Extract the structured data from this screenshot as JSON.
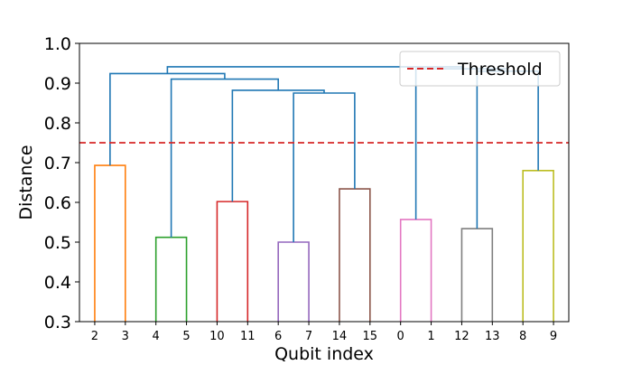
{
  "chart_data": {
    "type": "dendrogram",
    "title": "",
    "xlabel": "Qubit index",
    "ylabel": "Distance",
    "ylim": [
      0.3,
      1.0
    ],
    "yticks": [
      0.3,
      0.4,
      0.5,
      0.6,
      0.7,
      0.8,
      0.9,
      1.0
    ],
    "grid": false,
    "legend_placement": "top-right",
    "leaf_labels": [
      "2",
      "3",
      "4",
      "5",
      "10",
      "11",
      "6",
      "7",
      "14",
      "15",
      "0",
      "1",
      "12",
      "13",
      "8",
      "9"
    ],
    "threshold": {
      "name": "Threshold",
      "value": 0.75,
      "color": "#d62728",
      "style": "dashed"
    },
    "links": [
      {
        "left": "2",
        "right": "3",
        "height": 0.693,
        "color": "#ff7f0e"
      },
      {
        "left": "4",
        "right": "5",
        "height": 0.512,
        "color": "#2ca02c"
      },
      {
        "left": "10",
        "right": "11",
        "height": 0.602,
        "color": "#d62728"
      },
      {
        "left": "6",
        "right": "7",
        "height": 0.5,
        "color": "#9467bd"
      },
      {
        "left": "14",
        "right": "15",
        "height": 0.634,
        "color": "#8c564b"
      },
      {
        "left": "0",
        "right": "1",
        "height": 0.557,
        "color": "#e377c2"
      },
      {
        "left": "12",
        "right": "13",
        "height": 0.534,
        "color": "#7f7f7f"
      },
      {
        "left": "8",
        "right": "9",
        "height": 0.68,
        "color": "#bcbd22"
      },
      {
        "left": "{6,7}",
        "right": "{14,15}",
        "height": 0.875,
        "color": "#1f77b4"
      },
      {
        "left": "{10,11}",
        "right": "{6,7,14,15}",
        "height": 0.882,
        "color": "#1f77b4"
      },
      {
        "left": "{4,5}",
        "right": "{10,11,6,7,14,15}",
        "height": 0.91,
        "color": "#1f77b4"
      },
      {
        "left": "{2,3}",
        "right": "{4,5,10,11,6,7,14,15}",
        "height": 0.924,
        "color": "#1f77b4"
      },
      {
        "left": "{12,13}",
        "right": "{8,9}",
        "height": 0.93,
        "color": "#1f77b4"
      },
      {
        "left": "{0,1}",
        "right": "{12,13,8,9}",
        "height": 0.936,
        "color": "#1f77b4"
      },
      {
        "left": "{2,...,15}",
        "right": "{0,1,12,13,8,9}",
        "height": 0.941,
        "color": "#1f77b4"
      }
    ]
  }
}
